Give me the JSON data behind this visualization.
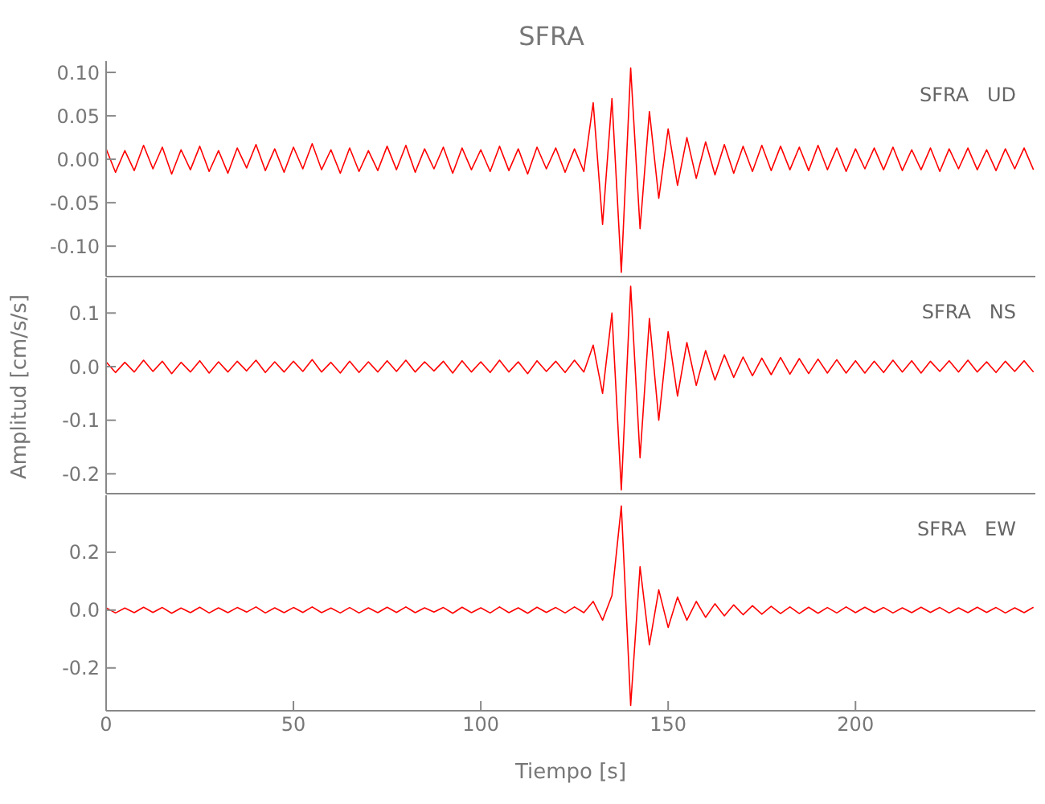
{
  "chart_data": [
    {
      "type": "line",
      "title": "SFRA",
      "annotations": [
        "SFRA   UD"
      ],
      "tick_labels": "y",
      "marker": "none",
      "xlim": [
        0,
        248
      ],
      "xticks": [
        0,
        50,
        100,
        150,
        200
      ],
      "ylim": [
        -0.135,
        0.113
      ],
      "yticks": [
        {
          "value": 0.1,
          "label": "0.10"
        },
        {
          "value": 0.05,
          "label": "0.05"
        },
        {
          "value": 0,
          "label": "0.00"
        },
        {
          "value": -0.05,
          "label": "-0.05"
        },
        {
          "value": -0.1,
          "label": "-0.10"
        }
      ],
      "x": [
        0,
        2.5,
        5,
        7.5,
        10,
        12.5,
        15,
        17.5,
        20,
        22.5,
        25,
        27.5,
        30,
        32.5,
        35,
        37.5,
        40,
        42.5,
        45,
        47.5,
        50,
        52.5,
        55,
        57.5,
        60,
        62.5,
        65,
        67.5,
        70,
        72.5,
        75,
        77.5,
        80,
        82.5,
        85,
        87.5,
        90,
        92.5,
        95,
        97.5,
        100,
        102.5,
        105,
        107.5,
        110,
        112.5,
        115,
        117.5,
        120,
        122.5,
        125,
        127.5,
        130,
        132.5,
        135,
        137.5,
        140,
        142.5,
        145,
        147.5,
        150,
        152.5,
        155,
        157.5,
        160,
        162.5,
        165,
        167.5,
        170,
        172.5,
        175,
        177.5,
        180,
        182.5,
        185,
        187.5,
        190,
        192.5,
        195,
        197.5,
        200,
        202.5,
        205,
        207.5,
        210,
        212.5,
        215,
        217.5,
        220,
        222.5,
        225,
        227.5,
        230,
        232.5,
        235,
        237.5,
        240,
        242.5,
        245,
        247.5
      ],
      "series": [
        {
          "color": "#ff0000",
          "values": [
            0.012,
            -0.015,
            0.01,
            -0.013,
            0.016,
            -0.011,
            0.014,
            -0.017,
            0.011,
            -0.012,
            0.015,
            -0.014,
            0.01,
            -0.016,
            0.013,
            -0.01,
            0.017,
            -0.013,
            0.012,
            -0.015,
            0.014,
            -0.011,
            0.018,
            -0.012,
            0.011,
            -0.016,
            0.013,
            -0.014,
            0.01,
            -0.013,
            0.015,
            -0.012,
            0.016,
            -0.015,
            0.012,
            -0.011,
            0.014,
            -0.016,
            0.013,
            -0.012,
            0.011,
            -0.014,
            0.015,
            -0.013,
            0.012,
            -0.017,
            0.014,
            -0.011,
            0.013,
            -0.015,
            0.012,
            -0.014,
            0.065,
            -0.075,
            0.07,
            -0.13,
            0.105,
            -0.08,
            0.055,
            -0.045,
            0.035,
            -0.03,
            0.025,
            -0.022,
            0.02,
            -0.018,
            0.017,
            -0.016,
            0.015,
            -0.014,
            0.016,
            -0.013,
            0.015,
            -0.012,
            0.014,
            -0.013,
            0.016,
            -0.012,
            0.013,
            -0.014,
            0.012,
            -0.011,
            0.013,
            -0.012,
            0.014,
            -0.013,
            0.011,
            -0.012,
            0.013,
            -0.014,
            0.012,
            -0.011,
            0.013,
            -0.012,
            0.011,
            -0.013,
            0.012,
            -0.011,
            0.013,
            -0.012
          ]
        }
      ]
    },
    {
      "type": "line",
      "ylabel": "Amplitud [cm/s/s]",
      "annotations": [
        "SFRA   NS"
      ],
      "tick_labels": "y",
      "marker": "none",
      "xlim": [
        0,
        248
      ],
      "xticks": [
        0,
        50,
        100,
        150,
        200
      ],
      "ylim": [
        -0.237,
        0.165
      ],
      "yticks": [
        0.1,
        {
          "value": 0,
          "label": "0.0"
        },
        -0.1,
        -0.2
      ],
      "x": [
        0,
        2.5,
        5,
        7.5,
        10,
        12.5,
        15,
        17.5,
        20,
        22.5,
        25,
        27.5,
        30,
        32.5,
        35,
        37.5,
        40,
        42.5,
        45,
        47.5,
        50,
        52.5,
        55,
        57.5,
        60,
        62.5,
        65,
        67.5,
        70,
        72.5,
        75,
        77.5,
        80,
        82.5,
        85,
        87.5,
        90,
        92.5,
        95,
        97.5,
        100,
        102.5,
        105,
        107.5,
        110,
        112.5,
        115,
        117.5,
        120,
        122.5,
        125,
        127.5,
        130,
        132.5,
        135,
        137.5,
        140,
        142.5,
        145,
        147.5,
        150,
        152.5,
        155,
        157.5,
        160,
        162.5,
        165,
        167.5,
        170,
        172.5,
        175,
        177.5,
        180,
        182.5,
        185,
        187.5,
        190,
        192.5,
        195,
        197.5,
        200,
        202.5,
        205,
        207.5,
        210,
        212.5,
        215,
        217.5,
        220,
        222.5,
        225,
        227.5,
        230,
        232.5,
        235,
        237.5,
        240,
        242.5,
        245,
        247.5
      ],
      "series": [
        {
          "color": "#ff0000",
          "values": [
            0.009,
            -0.011,
            0.008,
            -0.01,
            0.012,
            -0.009,
            0.01,
            -0.013,
            0.008,
            -0.01,
            0.011,
            -0.012,
            0.009,
            -0.01,
            0.01,
            -0.008,
            0.012,
            -0.011,
            0.009,
            -0.01,
            0.01,
            -0.009,
            0.013,
            -0.01,
            0.008,
            -0.012,
            0.01,
            -0.011,
            0.009,
            -0.01,
            0.011,
            -0.009,
            0.012,
            -0.01,
            0.009,
            -0.008,
            0.01,
            -0.012,
            0.011,
            -0.01,
            0.009,
            -0.011,
            0.012,
            -0.01,
            0.009,
            -0.013,
            0.011,
            -0.009,
            0.01,
            -0.011,
            0.012,
            -0.01,
            0.04,
            -0.05,
            0.1,
            -0.23,
            0.15,
            -0.17,
            0.09,
            -0.1,
            0.065,
            -0.055,
            0.045,
            -0.035,
            0.03,
            -0.025,
            0.022,
            -0.02,
            0.018,
            -0.017,
            0.016,
            -0.015,
            0.017,
            -0.014,
            0.015,
            -0.013,
            0.014,
            -0.012,
            0.013,
            -0.012,
            0.011,
            -0.012,
            0.01,
            -0.011,
            0.012,
            -0.01,
            0.011,
            -0.012,
            0.01,
            -0.009,
            0.011,
            -0.01,
            0.012,
            -0.01,
            0.009,
            -0.011,
            0.01,
            -0.009,
            0.011,
            -0.01
          ]
        }
      ]
    },
    {
      "type": "line",
      "xlabel": "Tiempo [s]",
      "annotations": [
        "SFRA   EW"
      ],
      "marker": "none",
      "xlim": [
        0,
        248
      ],
      "xticks": [
        0,
        50,
        100,
        150,
        200
      ],
      "ylim": [
        -0.348,
        0.397
      ],
      "yticks": [
        0.2,
        {
          "value": 0,
          "label": "0.0"
        },
        -0.2
      ],
      "x": [
        0,
        2.5,
        5,
        7.5,
        10,
        12.5,
        15,
        17.5,
        20,
        22.5,
        25,
        27.5,
        30,
        32.5,
        35,
        37.5,
        40,
        42.5,
        45,
        47.5,
        50,
        52.5,
        55,
        57.5,
        60,
        62.5,
        65,
        67.5,
        70,
        72.5,
        75,
        77.5,
        80,
        82.5,
        85,
        87.5,
        90,
        92.5,
        95,
        97.5,
        100,
        102.5,
        105,
        107.5,
        110,
        112.5,
        115,
        117.5,
        120,
        122.5,
        125,
        127.5,
        130,
        132.5,
        135,
        137.5,
        140,
        142.5,
        145,
        147.5,
        150,
        152.5,
        155,
        157.5,
        160,
        162.5,
        165,
        167.5,
        170,
        172.5,
        175,
        177.5,
        180,
        182.5,
        185,
        187.5,
        190,
        192.5,
        195,
        197.5,
        200,
        202.5,
        205,
        207.5,
        210,
        212.5,
        215,
        217.5,
        220,
        222.5,
        225,
        227.5,
        230,
        232.5,
        235,
        237.5,
        240,
        242.5,
        245,
        247.5
      ],
      "series": [
        {
          "color": "#ff0000",
          "values": [
            0.008,
            -0.01,
            0.007,
            -0.009,
            0.01,
            -0.008,
            0.009,
            -0.011,
            0.007,
            -0.009,
            0.01,
            -0.01,
            0.008,
            -0.009,
            0.009,
            -0.007,
            0.011,
            -0.01,
            0.008,
            -0.009,
            0.009,
            -0.008,
            0.011,
            -0.009,
            0.007,
            -0.01,
            0.009,
            -0.01,
            0.008,
            -0.009,
            0.01,
            -0.008,
            0.011,
            -0.009,
            0.008,
            -0.007,
            0.009,
            -0.011,
            0.01,
            -0.009,
            0.008,
            -0.01,
            0.011,
            -0.009,
            0.008,
            -0.011,
            0.01,
            -0.008,
            0.009,
            -0.01,
            0.011,
            -0.009,
            0.03,
            -0.035,
            0.05,
            0.36,
            -0.33,
            0.15,
            -0.12,
            0.07,
            -0.06,
            0.045,
            -0.035,
            0.03,
            -0.025,
            0.022,
            -0.02,
            0.018,
            -0.016,
            0.015,
            -0.014,
            0.013,
            -0.012,
            0.011,
            -0.012,
            0.01,
            -0.011,
            0.009,
            -0.01,
            0.011,
            -0.009,
            0.01,
            -0.008,
            0.009,
            -0.01,
            0.008,
            -0.009,
            0.01,
            -0.008,
            0.009,
            -0.01,
            0.008,
            -0.009,
            0.01,
            -0.008,
            0.009,
            -0.01,
            0.008,
            -0.009,
            0.01
          ]
        }
      ]
    }
  ]
}
